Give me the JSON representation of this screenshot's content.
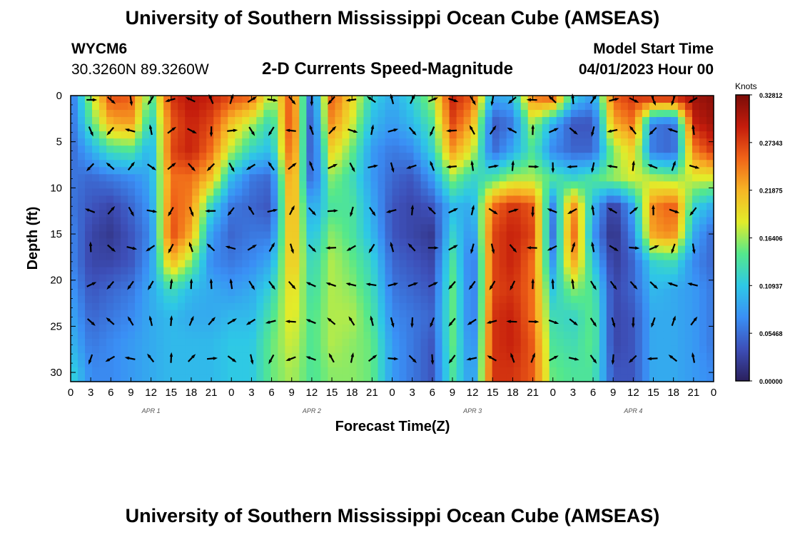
{
  "header": {
    "title": "University of Southern Mississippi Ocean Cube (AMSEAS)",
    "station_id": "WYCM6",
    "station_coords": "30.3260N  89.3260W",
    "plot_subtitle": "2-D Currents Speed-Magnitude",
    "model_start_label": "Model Start Time",
    "model_start_value": "04/01/2023 Hour 00"
  },
  "footer": {
    "repeat_title": "University of Southern Mississippi Ocean Cube (AMSEAS)"
  },
  "colors": {
    "colormap": [
      "#2a1f5c",
      "#3d4fb8",
      "#3a8ff5",
      "#2ec8e6",
      "#54e88c",
      "#e2ec2a",
      "#f7b525",
      "#f06418",
      "#c41c0c",
      "#7a0c08"
    ]
  },
  "chart_data": {
    "type": "heatmap",
    "title": "2-D Currents Speed-Magnitude",
    "xlabel": "Forecast Time(Z)",
    "ylabel": "Depth (ft)",
    "x_tick_labels": [
      "0",
      "3",
      "6",
      "9",
      "12",
      "15",
      "18",
      "21",
      "0",
      "3",
      "6",
      "9",
      "12",
      "15",
      "18",
      "21",
      "0",
      "3",
      "6",
      "9",
      "12",
      "15",
      "18",
      "21",
      "0",
      "3",
      "6",
      "9",
      "12",
      "15",
      "18",
      "21",
      "0"
    ],
    "x_hours_range": [
      0,
      96
    ],
    "day_labels": [
      {
        "label": "APR 1",
        "hour": 12
      },
      {
        "label": "APR 2",
        "hour": 36
      },
      {
        "label": "APR 3",
        "hour": 60
      },
      {
        "label": "APR 4",
        "hour": 84
      }
    ],
    "y_ticks": [
      "0",
      "5",
      "10",
      "15",
      "20",
      "25",
      "30"
    ],
    "ylim": [
      0,
      31
    ],
    "colorbar": {
      "unit_label": "Knots",
      "tick_labels": [
        "0.32812",
        "0.27343",
        "0.21875",
        "0.16406",
        "0.10937",
        "0.05468",
        "0.00000"
      ],
      "range": [
        0,
        0.3281
      ]
    },
    "vector_depths_ft": [
      0,
      3.8,
      7.7,
      12.5,
      16.5,
      20.5,
      24.5,
      28.5
    ],
    "vector_hours": [
      3,
      6,
      9,
      12,
      15,
      18,
      21,
      24,
      27,
      30,
      33,
      36,
      39,
      42,
      45,
      48,
      51,
      54,
      57,
      60,
      63,
      66,
      69,
      72,
      75,
      78,
      81,
      84,
      87,
      90,
      93,
      96
    ],
    "speed_grid_note": "approximate speed field (knots), rows = depth layers, columns = 3-hour steps 0..96",
    "speed_grid_depths_ft": [
      0,
      3,
      6,
      9,
      12,
      15,
      18,
      21,
      24,
      27,
      30
    ],
    "speed_grid_hours": [
      0,
      3,
      6,
      9,
      12,
      15,
      18,
      21,
      24,
      27,
      30,
      33,
      36,
      39,
      42,
      45,
      48,
      51,
      54,
      57,
      60,
      63,
      66,
      69,
      72,
      75,
      78,
      81,
      84,
      87,
      90,
      93,
      96
    ],
    "speed_grid": [
      [
        0.05,
        0.17,
        0.27,
        0.26,
        0.14,
        0.28,
        0.3,
        0.29,
        0.27,
        0.26,
        0.16,
        0.27,
        0.04,
        0.26,
        0.2,
        0.12,
        0.09,
        0.12,
        0.17,
        0.29,
        0.26,
        0.09,
        0.1,
        0.25,
        0.27,
        0.12,
        0.08,
        0.26,
        0.28,
        0.3,
        0.3,
        0.31,
        0.32
      ],
      [
        0.05,
        0.14,
        0.22,
        0.23,
        0.11,
        0.26,
        0.29,
        0.27,
        0.21,
        0.17,
        0.12,
        0.28,
        0.03,
        0.24,
        0.18,
        0.1,
        0.08,
        0.1,
        0.14,
        0.27,
        0.22,
        0.04,
        0.06,
        0.17,
        0.09,
        0.04,
        0.04,
        0.22,
        0.25,
        0.06,
        0.05,
        0.29,
        0.31
      ],
      [
        0.05,
        0.09,
        0.13,
        0.14,
        0.09,
        0.27,
        0.29,
        0.25,
        0.17,
        0.12,
        0.1,
        0.27,
        0.03,
        0.2,
        0.15,
        0.08,
        0.06,
        0.07,
        0.12,
        0.23,
        0.18,
        0.05,
        0.09,
        0.14,
        0.07,
        0.05,
        0.05,
        0.16,
        0.2,
        0.06,
        0.05,
        0.24,
        0.28
      ],
      [
        0.06,
        0.05,
        0.06,
        0.07,
        0.09,
        0.25,
        0.25,
        0.21,
        0.1,
        0.06,
        0.05,
        0.25,
        0.04,
        0.16,
        0.13,
        0.08,
        0.05,
        0.04,
        0.08,
        0.16,
        0.12,
        0.14,
        0.17,
        0.17,
        0.14,
        0.12,
        0.14,
        0.16,
        0.18,
        0.17,
        0.16,
        0.18,
        0.18
      ],
      [
        0.06,
        0.04,
        0.03,
        0.05,
        0.08,
        0.26,
        0.24,
        0.12,
        0.06,
        0.05,
        0.04,
        0.24,
        0.08,
        0.14,
        0.14,
        0.09,
        0.04,
        0.03,
        0.04,
        0.1,
        0.09,
        0.25,
        0.28,
        0.26,
        0.07,
        0.24,
        0.1,
        0.02,
        0.09,
        0.24,
        0.26,
        0.12,
        0.09
      ],
      [
        0.07,
        0.03,
        0.02,
        0.04,
        0.07,
        0.27,
        0.22,
        0.08,
        0.05,
        0.06,
        0.06,
        0.23,
        0.1,
        0.16,
        0.14,
        0.1,
        0.04,
        0.03,
        0.02,
        0.12,
        0.07,
        0.27,
        0.29,
        0.27,
        0.06,
        0.26,
        0.08,
        0.01,
        0.07,
        0.23,
        0.24,
        0.09,
        0.05
      ],
      [
        0.07,
        0.03,
        0.03,
        0.04,
        0.08,
        0.22,
        0.16,
        0.07,
        0.06,
        0.07,
        0.09,
        0.22,
        0.12,
        0.17,
        0.15,
        0.12,
        0.05,
        0.04,
        0.03,
        0.14,
        0.05,
        0.27,
        0.29,
        0.25,
        0.08,
        0.23,
        0.11,
        0.02,
        0.05,
        0.12,
        0.13,
        0.07,
        0.05
      ],
      [
        0.08,
        0.04,
        0.05,
        0.06,
        0.09,
        0.13,
        0.1,
        0.09,
        0.08,
        0.09,
        0.12,
        0.2,
        0.13,
        0.17,
        0.16,
        0.13,
        0.06,
        0.05,
        0.04,
        0.15,
        0.05,
        0.27,
        0.28,
        0.25,
        0.11,
        0.16,
        0.14,
        0.03,
        0.05,
        0.1,
        0.09,
        0.08,
        0.06
      ],
      [
        0.09,
        0.05,
        0.06,
        0.07,
        0.09,
        0.1,
        0.09,
        0.09,
        0.1,
        0.1,
        0.14,
        0.19,
        0.14,
        0.17,
        0.17,
        0.14,
        0.07,
        0.06,
        0.05,
        0.15,
        0.05,
        0.28,
        0.29,
        0.25,
        0.13,
        0.12,
        0.15,
        0.03,
        0.04,
        0.09,
        0.09,
        0.08,
        0.06
      ],
      [
        0.1,
        0.06,
        0.07,
        0.08,
        0.09,
        0.1,
        0.1,
        0.1,
        0.11,
        0.11,
        0.15,
        0.18,
        0.14,
        0.17,
        0.16,
        0.15,
        0.08,
        0.06,
        0.04,
        0.15,
        0.06,
        0.28,
        0.29,
        0.26,
        0.14,
        0.13,
        0.15,
        0.03,
        0.04,
        0.09,
        0.09,
        0.08,
        0.06
      ],
      [
        0.12,
        0.07,
        0.07,
        0.08,
        0.09,
        0.1,
        0.1,
        0.1,
        0.11,
        0.11,
        0.15,
        0.17,
        0.14,
        0.16,
        0.16,
        0.15,
        0.08,
        0.06,
        0.04,
        0.14,
        0.07,
        0.28,
        0.28,
        0.26,
        0.15,
        0.14,
        0.14,
        0.04,
        0.04,
        0.09,
        0.09,
        0.08,
        0.07
      ]
    ]
  }
}
